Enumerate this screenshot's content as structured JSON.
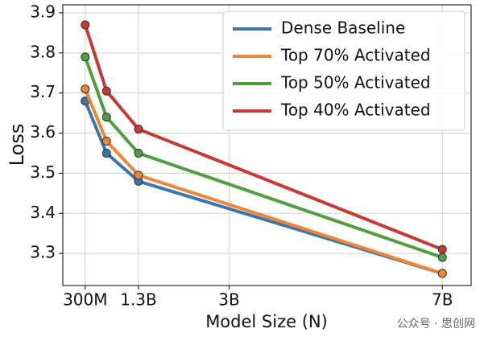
{
  "chart_data": {
    "type": "line",
    "x": [
      0.3,
      0.7,
      1.3,
      7
    ],
    "series": [
      {
        "name": "Dense Baseline",
        "color": "#3b75af",
        "values": [
          3.68,
          3.55,
          3.48,
          3.25
        ]
      },
      {
        "name": "Top 70% Activated",
        "color": "#ef8636",
        "values": [
          3.71,
          3.58,
          3.495,
          3.25
        ]
      },
      {
        "name": "Top 50% Activated",
        "color": "#519e3e",
        "values": [
          3.79,
          3.64,
          3.55,
          3.29
        ]
      },
      {
        "name": "Top 40% Activated",
        "color": "#c53a32",
        "values": [
          3.87,
          3.705,
          3.61,
          3.31
        ]
      }
    ],
    "xlabel": "Model Size (N)",
    "ylabel": "Loss",
    "xlim": [
      -0.12,
      7.54
    ],
    "ylim": [
      3.22,
      3.92
    ],
    "xticks": [
      {
        "value": 0.3,
        "label": "300M"
      },
      {
        "value": 1.3,
        "label": "1.3B"
      },
      {
        "value": 3,
        "label": "3B"
      },
      {
        "value": 7,
        "label": "7B"
      }
    ],
    "yticks": [
      3.3,
      3.4,
      3.5,
      3.6,
      3.7,
      3.8,
      3.9
    ],
    "grid": true,
    "legend": "upper right",
    "watermark": "公众号 · 思创网"
  }
}
